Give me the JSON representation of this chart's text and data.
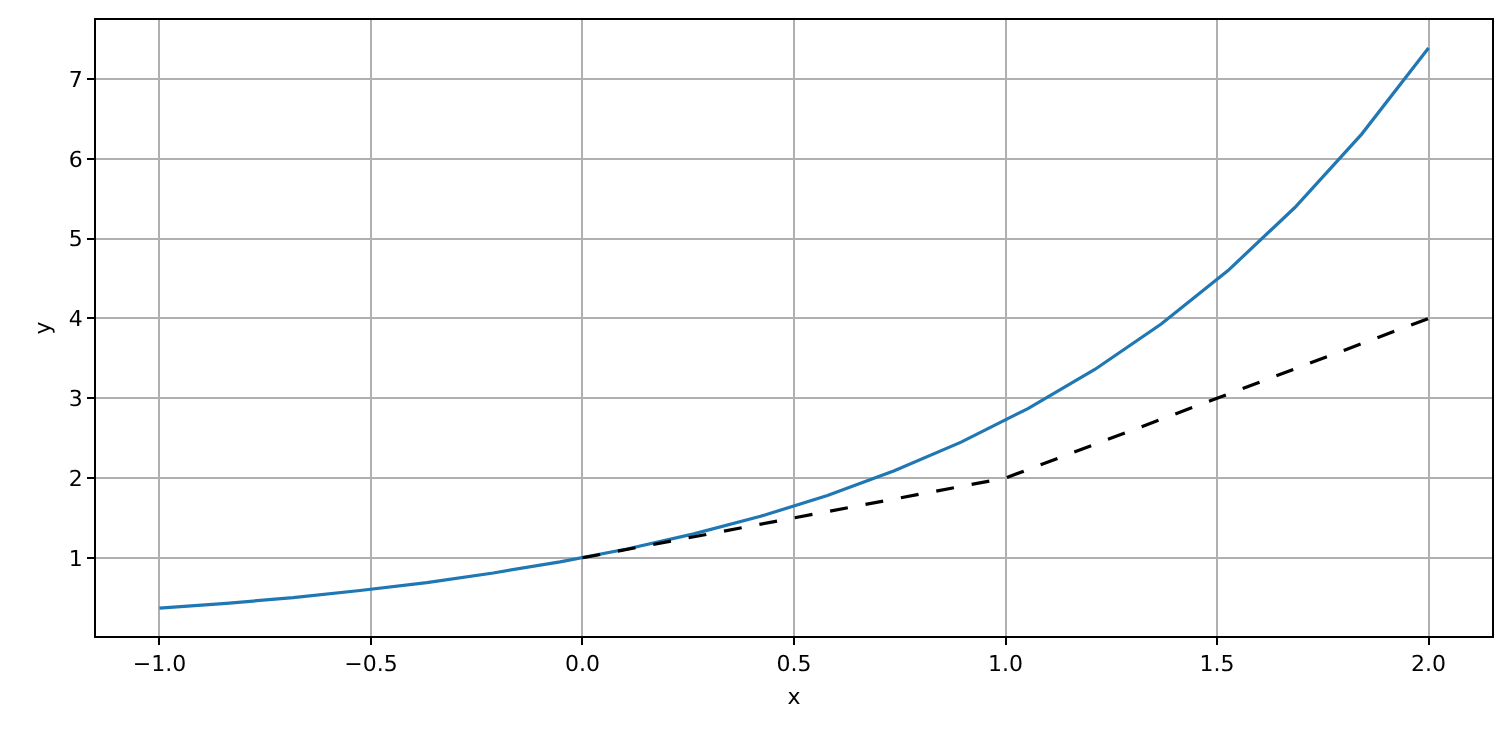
{
  "chart_data": {
    "type": "line",
    "xlabel": "x",
    "ylabel": "y",
    "xlim": [
      -1.15,
      2.15
    ],
    "ylim": [
      0.02,
      7.74
    ],
    "xticks": [
      {
        "value": -1,
        "label": "−1.0"
      },
      {
        "value": -0.5,
        "label": "−0.5"
      },
      {
        "value": 0,
        "label": "0.0"
      },
      {
        "value": 0.5,
        "label": "0.5"
      },
      {
        "value": 1,
        "label": "1.0"
      },
      {
        "value": 1.5,
        "label": "1.5"
      },
      {
        "value": 2,
        "label": "2.0"
      }
    ],
    "yticks": [
      1,
      2,
      3,
      4,
      5,
      6,
      7
    ],
    "grid": true,
    "legend": false,
    "series": [
      {
        "color": "#1f77b4",
        "line_style": "solid",
        "x": [
          -1,
          -0.842,
          -0.684,
          -0.526,
          -0.368,
          -0.211,
          -0.053,
          0.105,
          0.263,
          0.421,
          0.579,
          0.737,
          0.895,
          1.053,
          1.211,
          1.368,
          1.526,
          1.684,
          1.842,
          2.0
        ],
        "values": [
          0.37,
          0.43,
          0.5,
          0.59,
          0.69,
          0.81,
          0.95,
          1.11,
          1.3,
          1.52,
          1.78,
          2.09,
          2.45,
          2.87,
          3.36,
          3.93,
          4.6,
          5.39,
          6.31,
          7.39
        ]
      },
      {
        "color": "#000000",
        "line_style": "dashed",
        "x": [
          0,
          1,
          2
        ],
        "values": [
          1,
          2,
          4
        ]
      }
    ]
  }
}
